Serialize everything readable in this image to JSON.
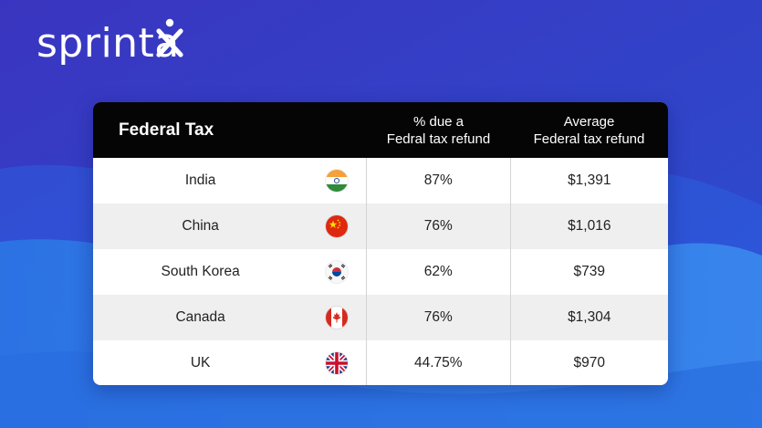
{
  "brand": {
    "name": "sprinta"
  },
  "table": {
    "title": "Federal Tax",
    "col_percent": [
      "% due a",
      "Fedral tax refund"
    ],
    "col_average": [
      "Average",
      "Federal tax refund"
    ],
    "rows": [
      {
        "country": "India",
        "flag": "india-flag-icon",
        "percent": "87%",
        "average": "$1,391"
      },
      {
        "country": "China",
        "flag": "china-flag-icon",
        "percent": "76%",
        "average": "$1,016"
      },
      {
        "country": "South Korea",
        "flag": "south-korea-flag-icon",
        "percent": "62%",
        "average": "$739"
      },
      {
        "country": "Canada",
        "flag": "canada-flag-icon",
        "percent": "76%",
        "average": "$1,304"
      },
      {
        "country": "UK",
        "flag": "uk-flag-icon",
        "percent": "44.75%",
        "average": "$970"
      }
    ]
  },
  "colors": {
    "background": "#2f3fc4",
    "wave": "#1f8be8",
    "header": "#050505"
  }
}
